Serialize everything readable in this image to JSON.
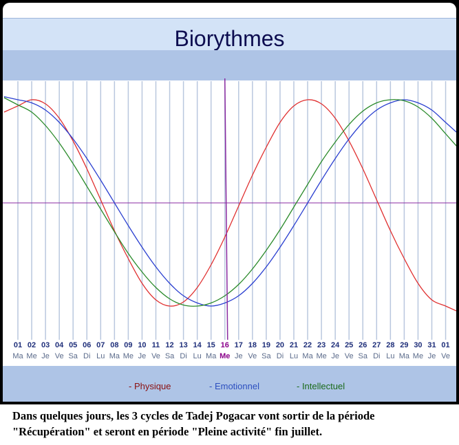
{
  "title": "Biorythmes",
  "colors": {
    "physique": "#e03030",
    "emotionnel": "#2a3fd0",
    "intellectuel": "#2a8a2a",
    "today": "#8a2aa0",
    "axis": "#8a2aa0",
    "grid": "#b9c7de",
    "day_number": "#1f2f7a",
    "weekday": "#5a6a8a",
    "today_label": "#8a008a"
  },
  "legend": {
    "physique": "- Physique",
    "emotionnel": "- Emotionnel",
    "intellectuel": "- Intellectuel"
  },
  "caption": "Dans quelques jours, les 3 cycles de Tadej Pogacar vont sortir de la période \"Récupération\" et seront en période \"Pleine activité\" fin juillet.",
  "chart_data": {
    "type": "line",
    "x_day_numbers": [
      "01",
      "02",
      "03",
      "04",
      "05",
      "06",
      "07",
      "08",
      "09",
      "10",
      "11",
      "12",
      "13",
      "14",
      "15",
      "16",
      "17",
      "18",
      "19",
      "20",
      "21",
      "22",
      "23",
      "24",
      "25",
      "26",
      "27",
      "28",
      "29",
      "30",
      "31",
      "01"
    ],
    "x_weekdays": [
      "Ma",
      "Me",
      "Je",
      "Ve",
      "Sa",
      "Di",
      "Lu",
      "Ma",
      "Me",
      "Je",
      "Ve",
      "Sa",
      "Di",
      "Lu",
      "Ma",
      "Me",
      "Je",
      "Ve",
      "Sa",
      "Di",
      "Lu",
      "Ma",
      "Me",
      "Je",
      "Ve",
      "Sa",
      "Di",
      "Lu",
      "Ma",
      "Me",
      "Je",
      "Ve"
    ],
    "today_index": 15,
    "ylim": [
      -1,
      1
    ],
    "series": [
      {
        "name": "Physique",
        "period_days": 23,
        "values": [
          0.94,
          1.0,
          0.96,
          0.82,
          0.6,
          0.33,
          0.03,
          -0.27,
          -0.54,
          -0.78,
          -0.94,
          -1.0,
          -0.96,
          -0.82,
          -0.6,
          -0.33,
          -0.03,
          0.27,
          0.54,
          0.78,
          0.94,
          1.0,
          0.96,
          0.82,
          0.6,
          0.33,
          0.03,
          -0.27,
          -0.54,
          -0.78,
          -0.94,
          -1.0
        ],
        "values_note_scale": "-1 to 1"
      },
      {
        "name": "Emotionnel",
        "period_days": 28,
        "values": [
          1.0,
          0.97,
          0.9,
          0.78,
          0.62,
          0.43,
          0.22,
          0.0,
          -0.22,
          -0.43,
          -0.62,
          -0.78,
          -0.9,
          -0.97,
          -1.0,
          -0.97,
          -0.9,
          -0.78,
          -0.62,
          -0.43,
          -0.22,
          0.0,
          0.22,
          0.43,
          0.62,
          0.78,
          0.9,
          0.97,
          1.0,
          0.97,
          0.9,
          0.78
        ]
      },
      {
        "name": "Intellectuel",
        "period_days": 33,
        "values": [
          0.95,
          0.88,
          0.75,
          0.58,
          0.38,
          0.16,
          -0.06,
          -0.28,
          -0.49,
          -0.67,
          -0.82,
          -0.93,
          -0.99,
          -1.0,
          -0.97,
          -0.9,
          -0.79,
          -0.64,
          -0.46,
          -0.26,
          -0.04,
          0.18,
          0.4,
          0.59,
          0.76,
          0.89,
          0.97,
          1.0,
          0.99,
          0.93,
          0.82,
          0.67
        ]
      }
    ]
  }
}
